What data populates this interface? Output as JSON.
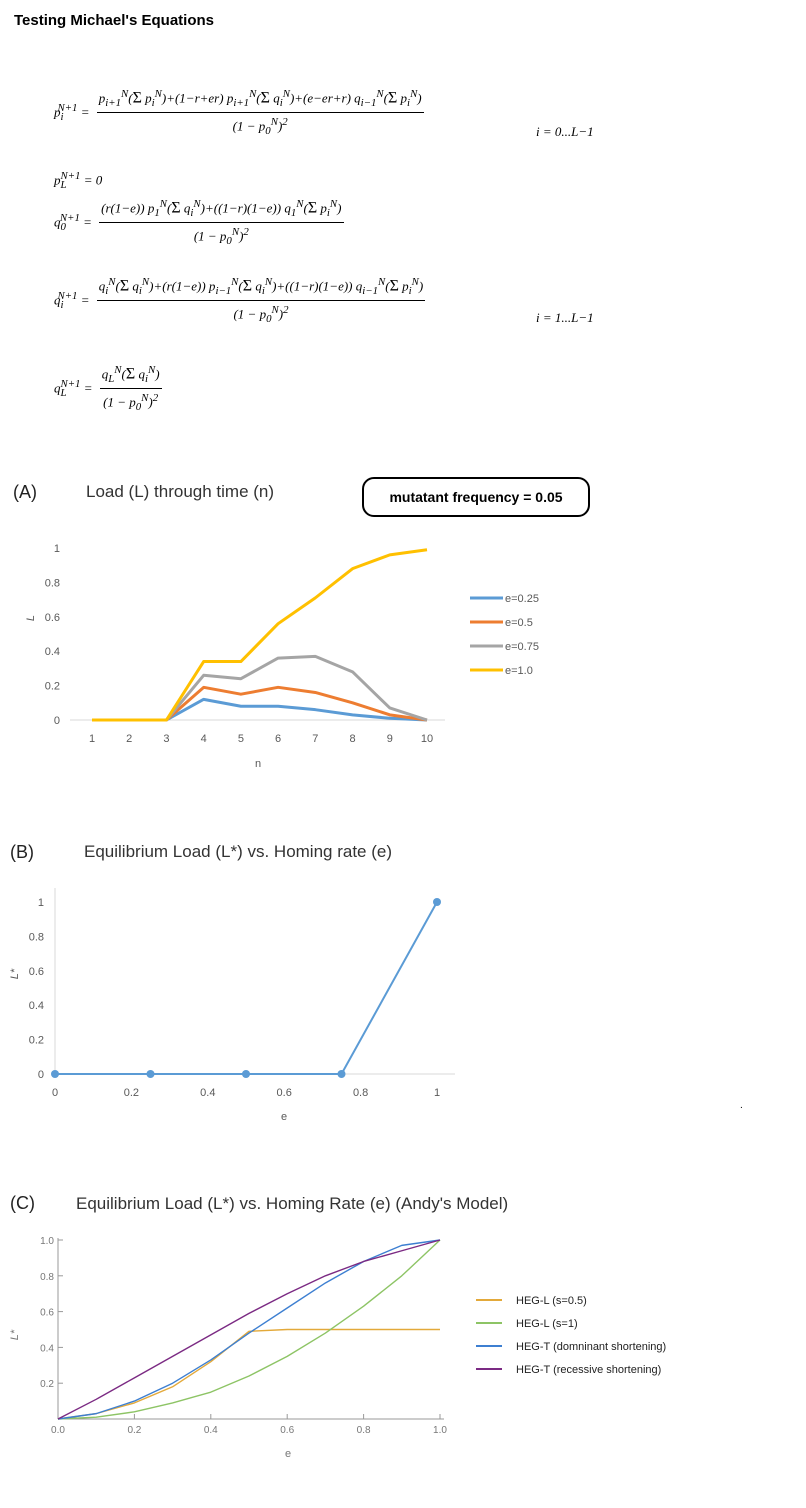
{
  "page": {
    "title": "Testing Michael's Equations",
    "trailing_mark": "."
  },
  "equations": {
    "cond1": "i = 0...L−1",
    "cond2": "i = 1...L−1",
    "eq_pL": "p",
    "eq_pL_rhs": "= 0"
  },
  "panel_a": {
    "label": "(A)",
    "title": "Load (L) through time (n)",
    "note": "mutatant frequency = 0.05"
  },
  "panel_b": {
    "label": "(B)",
    "title": "Equilibrium Load (L*) vs. Homing rate (e)"
  },
  "panel_c": {
    "label": "(C)",
    "title": "Equilibrium Load (L*) vs. Homing Rate (e) (Andy's Model)"
  },
  "chart_data": [
    {
      "type": "line",
      "xlabel": "n",
      "ylabel": "L",
      "x": [
        1,
        2,
        3,
        4,
        5,
        6,
        7,
        8,
        9,
        10
      ],
      "xticks": [
        "1",
        "2",
        "3",
        "4",
        "5",
        "6",
        "7",
        "8",
        "9",
        "10"
      ],
      "yticks": [
        "0",
        "0.2",
        "0.4",
        "0.6",
        "0.8",
        "1"
      ],
      "ylim": [
        0,
        1
      ],
      "legend_position": "right",
      "grid": false,
      "series": [
        {
          "name": "e=0.25",
          "color": "#5b9bd5",
          "values": [
            0,
            0,
            0,
            0.12,
            0.08,
            0.08,
            0.06,
            0.03,
            0.01,
            0
          ]
        },
        {
          "name": "e=0.5",
          "color": "#ed7d31",
          "values": [
            0,
            0,
            0,
            0.19,
            0.15,
            0.19,
            0.16,
            0.1,
            0.03,
            0
          ]
        },
        {
          "name": "e=0.75",
          "color": "#a5a5a5",
          "values": [
            0,
            0,
            0,
            0.26,
            0.24,
            0.36,
            0.37,
            0.28,
            0.07,
            0
          ]
        },
        {
          "name": "e=1.0",
          "color": "#ffc000",
          "values": [
            0,
            0,
            0,
            0.34,
            0.34,
            0.56,
            0.71,
            0.88,
            0.96,
            0.99
          ]
        }
      ]
    },
    {
      "type": "line",
      "xlabel": "e",
      "ylabel": "L*",
      "x": [
        0,
        0.25,
        0.5,
        0.75,
        1
      ],
      "xticks": [
        "0",
        "0.2",
        "0.4",
        "0.6",
        "0.8",
        "1"
      ],
      "yticks": [
        "0",
        "0.2",
        "0.4",
        "0.6",
        "0.8",
        "1"
      ],
      "xlim": [
        0,
        1
      ],
      "ylim": [
        0,
        1
      ],
      "grid": false,
      "series": [
        {
          "name": "",
          "color": "#5b9bd5",
          "values": [
            0,
            0,
            0,
            0,
            1
          ]
        }
      ]
    },
    {
      "type": "line",
      "xlabel": "e",
      "ylabel": "L*",
      "xticks": [
        "0.0",
        "0.2",
        "0.4",
        "0.6",
        "0.8",
        "1.0"
      ],
      "yticks": [
        "0.2",
        "0.4",
        "0.6",
        "0.8",
        "1.0"
      ],
      "xlim": [
        0,
        1
      ],
      "ylim": [
        0,
        1
      ],
      "legend_position": "right",
      "grid": false,
      "x": [
        0,
        0.1,
        0.2,
        0.3,
        0.4,
        0.5,
        0.6,
        0.7,
        0.8,
        0.9,
        1.0
      ],
      "series": [
        {
          "name": "HEG-L (s=0.5)",
          "color": "#e3a93a",
          "values": [
            0,
            0.03,
            0.09,
            0.18,
            0.32,
            0.49,
            0.5,
            0.5,
            0.5,
            0.5,
            0.5
          ]
        },
        {
          "name": "HEG-L (s=1)",
          "color": "#8dc465",
          "values": [
            0,
            0.01,
            0.04,
            0.09,
            0.15,
            0.24,
            0.35,
            0.48,
            0.63,
            0.8,
            1.0
          ]
        },
        {
          "name": "HEG-T (domninant shortening)",
          "color": "#3d7fd1",
          "values": [
            0,
            0.03,
            0.1,
            0.2,
            0.33,
            0.48,
            0.62,
            0.76,
            0.88,
            0.97,
            1.0
          ]
        },
        {
          "name": "HEG-T (recessive shortening)",
          "color": "#7b2a83",
          "values": [
            0,
            0.11,
            0.23,
            0.35,
            0.47,
            0.59,
            0.7,
            0.8,
            0.88,
            0.94,
            1.0
          ]
        }
      ]
    }
  ]
}
